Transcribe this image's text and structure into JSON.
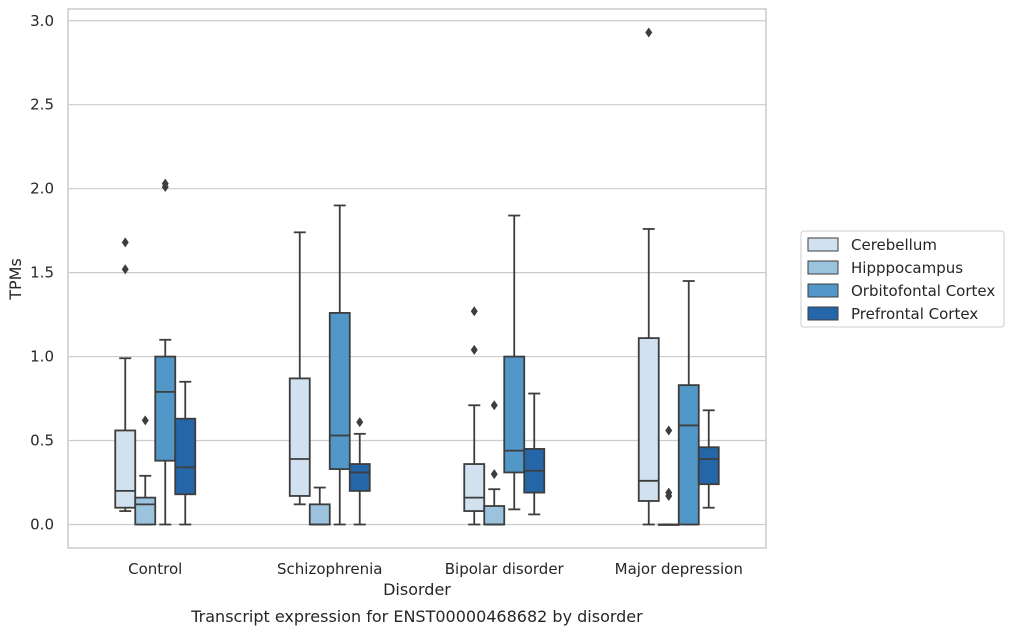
{
  "chart_data": {
    "type": "box",
    "title": "",
    "caption": "Transcript expression for ENST00000468682 by disorder",
    "xlabel": "Disorder",
    "ylabel": "TPMs",
    "ylim": [
      -0.14,
      3.07
    ],
    "yticks": [
      "0.0",
      "0.5",
      "1.0",
      "1.5",
      "2.0",
      "2.5",
      "3.0"
    ],
    "grid": "horizontal",
    "legend_position": "right",
    "categories": [
      "Control",
      "Schizophrenia",
      "Bipolar disorder",
      "Major depression"
    ],
    "series": [
      {
        "name": "Cerebellum",
        "color": "#d1e1ef",
        "boxes": [
          {
            "whislo": 0.08,
            "q1": 0.1,
            "med": 0.2,
            "q3": 0.56,
            "whishi": 0.99,
            "fliers": [
              1.52,
              1.68
            ]
          },
          {
            "whislo": 0.12,
            "q1": 0.17,
            "med": 0.39,
            "q3": 0.87,
            "whishi": 1.74,
            "fliers": []
          },
          {
            "whislo": 0.0,
            "q1": 0.08,
            "med": 0.16,
            "q3": 0.36,
            "whishi": 0.71,
            "fliers": [
              1.04,
              1.27
            ]
          },
          {
            "whislo": 0.0,
            "q1": 0.14,
            "med": 0.26,
            "q3": 1.11,
            "whishi": 1.76,
            "fliers": [
              2.93
            ]
          }
        ]
      },
      {
        "name": "Hipppocampus",
        "color": "#9cc3de",
        "boxes": [
          {
            "whislo": 0.0,
            "q1": 0.0,
            "med": 0.12,
            "q3": 0.16,
            "whishi": 0.29,
            "fliers": [
              0.62
            ]
          },
          {
            "whislo": 0.0,
            "q1": 0.0,
            "med": 0.0,
            "q3": 0.12,
            "whishi": 0.22,
            "fliers": []
          },
          {
            "whislo": 0.0,
            "q1": 0.0,
            "med": 0.0,
            "q3": 0.11,
            "whishi": 0.21,
            "fliers": [
              0.3,
              0.71
            ]
          },
          {
            "whislo": 0.0,
            "q1": 0.0,
            "med": 0.0,
            "q3": 0.0,
            "whishi": 0.0,
            "fliers": [
              0.17,
              0.19,
              0.56
            ]
          }
        ]
      },
      {
        "name": "Orbitofontal Cortex",
        "color": "#5197c7",
        "boxes": [
          {
            "whislo": 0.0,
            "q1": 0.38,
            "med": 0.79,
            "q3": 1.0,
            "whishi": 1.1,
            "fliers": [
              2.01,
              2.03
            ]
          },
          {
            "whislo": 0.0,
            "q1": 0.33,
            "med": 0.53,
            "q3": 1.26,
            "whishi": 1.9,
            "fliers": []
          },
          {
            "whislo": 0.09,
            "q1": 0.31,
            "med": 0.44,
            "q3": 1.0,
            "whishi": 1.84,
            "fliers": []
          },
          {
            "whislo": 0.0,
            "q1": 0.0,
            "med": 0.59,
            "q3": 0.83,
            "whishi": 1.45,
            "fliers": []
          }
        ]
      },
      {
        "name": "Prefrontal Cortex",
        "color": "#2566a8",
        "boxes": [
          {
            "whislo": 0.0,
            "q1": 0.18,
            "med": 0.34,
            "q3": 0.63,
            "whishi": 0.85,
            "fliers": []
          },
          {
            "whislo": 0.0,
            "q1": 0.2,
            "med": 0.31,
            "q3": 0.36,
            "whishi": 0.54,
            "fliers": [
              0.61
            ]
          },
          {
            "whislo": 0.06,
            "q1": 0.19,
            "med": 0.32,
            "q3": 0.45,
            "whishi": 0.78,
            "fliers": []
          },
          {
            "whislo": 0.1,
            "q1": 0.24,
            "med": 0.39,
            "q3": 0.46,
            "whishi": 0.68,
            "fliers": []
          }
        ]
      }
    ]
  }
}
